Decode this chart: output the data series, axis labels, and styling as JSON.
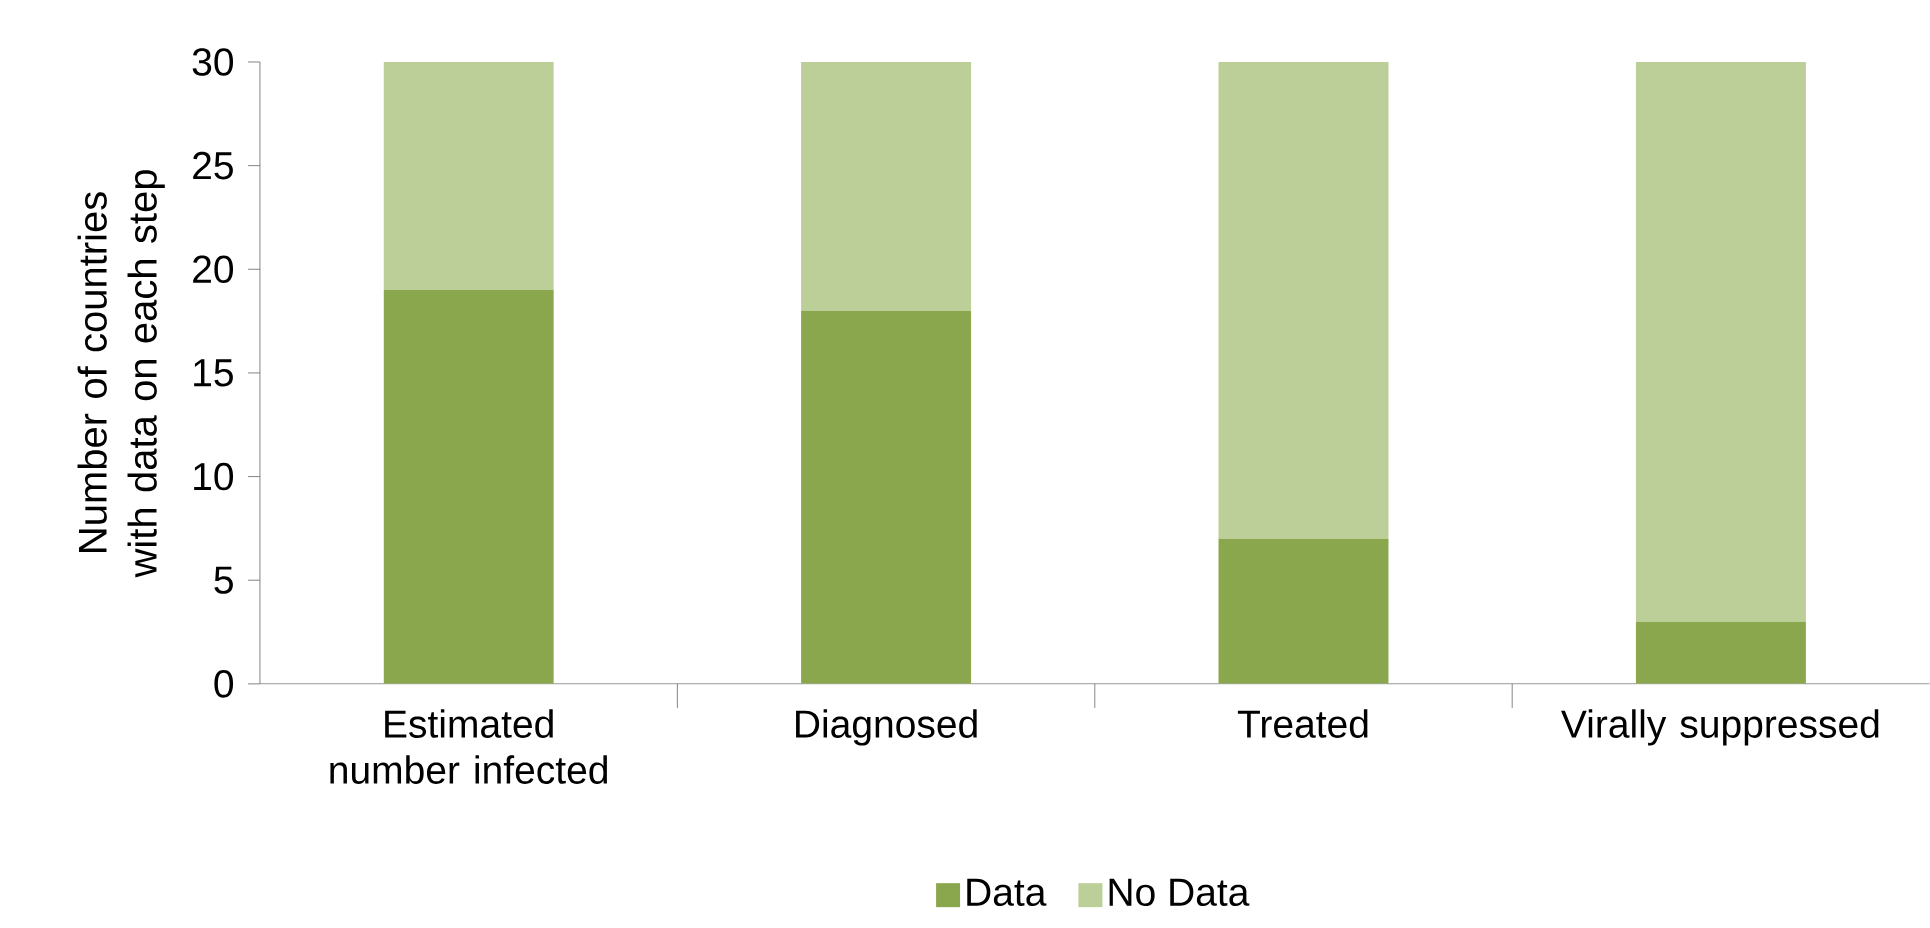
{
  "chart_data": {
    "type": "bar",
    "stacked": true,
    "legend": "bottom",
    "ylabel": "Number of countries with data on each step",
    "categories": [
      "Estimated number infected",
      "Diagnosed",
      "Treated",
      "Virally suppressed"
    ],
    "series": [
      {
        "name": "Data",
        "color": "#8aa74e",
        "values": [
          19,
          18,
          7,
          3
        ]
      },
      {
        "name": "No Data",
        "color": "#bccf98",
        "values": [
          11,
          12,
          23,
          27
        ]
      }
    ],
    "ylim": [
      0,
      30
    ],
    "yticks": [
      0,
      5,
      10,
      15,
      20,
      25,
      30
    ]
  }
}
